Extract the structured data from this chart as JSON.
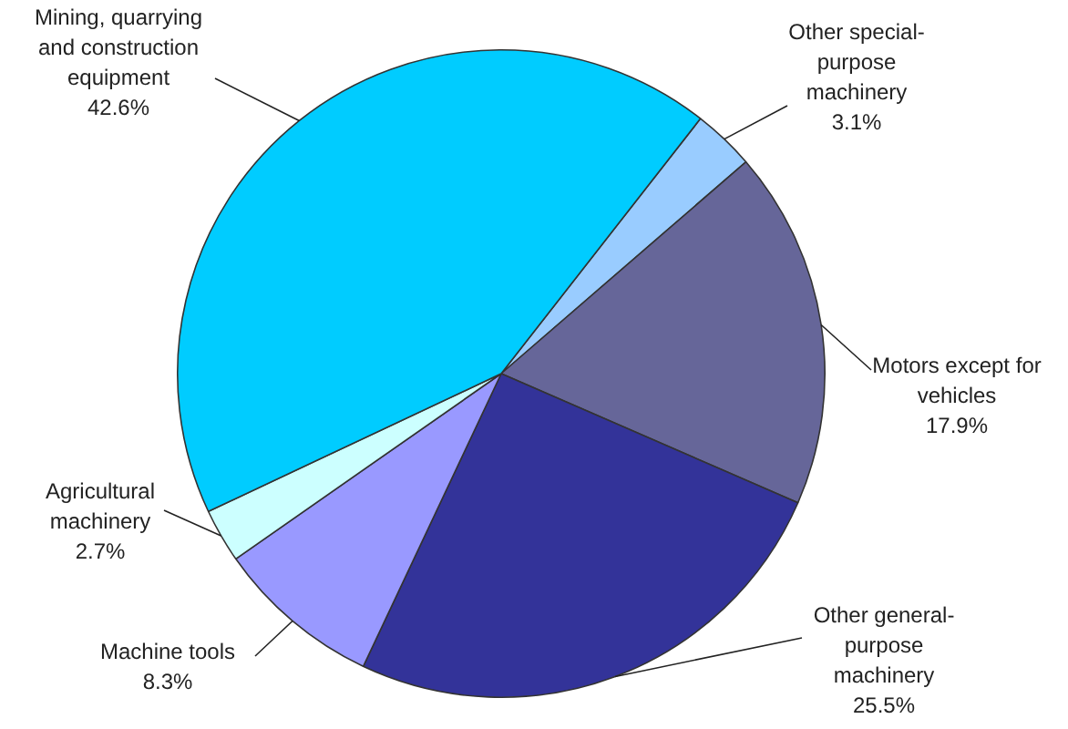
{
  "chart_data": {
    "type": "pie",
    "categories": [
      "Other special-purpose machinery",
      "Motors except for vehicles",
      "Other general-purpose machinery",
      "Machine tools",
      "Agricultural machinery",
      "Mining, quarrying and construction equipment"
    ],
    "values": [
      3.1,
      17.9,
      25.5,
      8.3,
      2.7,
      42.6
    ],
    "value_labels": [
      "3.1%",
      "17.9%",
      "25.5%",
      "8.3%",
      "2.7%",
      "42.6%"
    ],
    "colors": [
      "#99ccff",
      "#666699",
      "#333399",
      "#9999ff",
      "#ccffff",
      "#00ccff"
    ],
    "legend": false
  }
}
